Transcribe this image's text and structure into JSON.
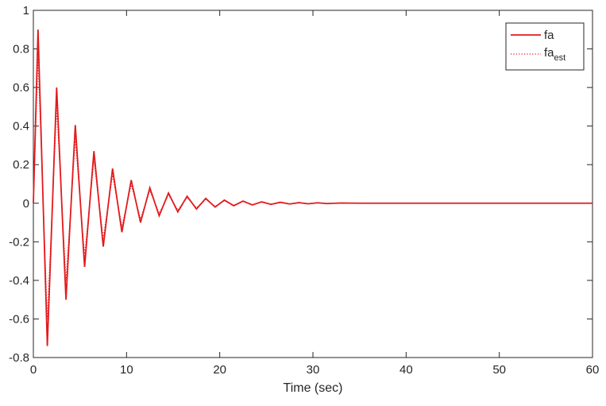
{
  "chart_data": {
    "type": "line",
    "title": "",
    "xlabel": "Time (sec)",
    "ylabel": "",
    "xlim": [
      0,
      60
    ],
    "ylim": [
      -0.8,
      1
    ],
    "xticks": [
      0,
      10,
      20,
      30,
      40,
      50,
      60
    ],
    "xtick_labels": [
      "0",
      "10",
      "20",
      "30",
      "40",
      "50",
      "60"
    ],
    "yticks": [
      -0.8,
      -0.6,
      -0.4,
      -0.2,
      0,
      0.2,
      0.4,
      0.6,
      0.8,
      1
    ],
    "ytick_labels": [
      "-0.8",
      "-0.6",
      "-0.4",
      "-0.2",
      "0",
      "0.2",
      "0.4",
      "0.6",
      "0.8",
      "1"
    ],
    "grid": false,
    "legend_position": "top-right",
    "series": [
      {
        "name": "fa",
        "legend_label": "fa",
        "style": "solid",
        "color": "#e31a1c",
        "x": [
          0,
          0.5,
          1.5,
          2.5,
          3.5,
          4.5,
          5.5,
          6.5,
          7.5,
          8.5,
          9.5,
          10.5,
          11.5,
          12.5,
          13.5,
          14.5,
          15.5,
          16.5,
          17.5,
          18.5,
          19.5,
          20.5,
          21.5,
          22.5,
          23.5,
          24.5,
          25.5,
          26.5,
          27.5,
          28.5,
          29.5,
          30.5,
          31.5,
          33,
          35,
          40,
          50,
          60
        ],
        "y": [
          0,
          0.9,
          -0.74,
          0.6,
          -0.5,
          0.405,
          -0.33,
          0.27,
          -0.225,
          0.18,
          -0.15,
          0.12,
          -0.1,
          0.08,
          -0.065,
          0.053,
          -0.045,
          0.036,
          -0.03,
          0.025,
          -0.02,
          0.016,
          -0.013,
          0.011,
          -0.009,
          0.007,
          -0.006,
          0.005,
          -0.004,
          0.003,
          -0.003,
          0.002,
          -0.002,
          0.001,
          0,
          0,
          0,
          0
        ]
      },
      {
        "name": "fa_est",
        "legend_label": "fa",
        "legend_subscript": "est",
        "style": "dotted",
        "color": "#e31a1c",
        "x": [
          0,
          0.5,
          1.5,
          2.5,
          3.5,
          4.5,
          5.5,
          6.5,
          7.5,
          8.5,
          9.5,
          10.5,
          11.5,
          12.5,
          13.5,
          14.5,
          15.5,
          16.5,
          17.5,
          18.5,
          19.5,
          20.5,
          21.5,
          22.5,
          23.5,
          24.5,
          25.5,
          26.5,
          27.5,
          28.5,
          29.5,
          30.5,
          31.5,
          33,
          35,
          40,
          50,
          60
        ],
        "y": [
          0,
          0.75,
          -0.6,
          0.5,
          -0.4,
          0.33,
          -0.27,
          0.22,
          -0.18,
          0.145,
          -0.12,
          0.095,
          -0.08,
          0.065,
          -0.053,
          0.043,
          -0.035,
          0.029,
          -0.024,
          0.02,
          -0.016,
          0.013,
          -0.011,
          0.009,
          -0.007,
          0.006,
          -0.005,
          0.004,
          -0.003,
          0.0025,
          -0.002,
          0.0015,
          -0.001,
          0.0005,
          0,
          0,
          0,
          0
        ]
      }
    ]
  }
}
